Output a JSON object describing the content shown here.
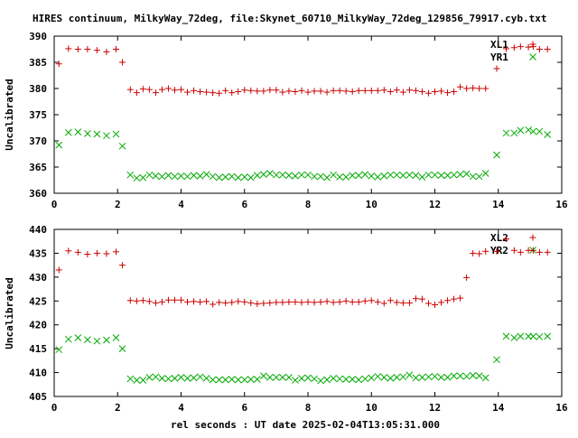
{
  "chart_data": [
    {
      "type": "scatter",
      "title": "HIRES continuum, MilkyWay_72deg, file:Skynet_60710_MilkyWay_72deg_129856_79917.cyb.txt",
      "ylabel": "Uncalibrated",
      "xlim": [
        0,
        16
      ],
      "ylim": [
        360,
        390
      ],
      "x_ticks": [
        "0",
        "2",
        "4",
        "6",
        "8",
        "10",
        "12",
        "14",
        "16"
      ],
      "y_ticks": [
        "360",
        "365",
        "370",
        "375",
        "380",
        "385",
        "390"
      ],
      "legend_position": "top-right",
      "series": [
        {
          "name": "XL1",
          "marker": "plus",
          "color": "#cc0000",
          "x": [
            0.15,
            0.45,
            0.75,
            1.05,
            1.35,
            1.65,
            1.95,
            2.15,
            2.4,
            2.6,
            2.8,
            3.0,
            3.2,
            3.4,
            3.6,
            3.8,
            4.0,
            4.2,
            4.4,
            4.6,
            4.8,
            5.0,
            5.2,
            5.4,
            5.6,
            5.8,
            6.0,
            6.2,
            6.4,
            6.6,
            6.8,
            7.0,
            7.2,
            7.4,
            7.6,
            7.8,
            8.0,
            8.2,
            8.4,
            8.6,
            8.8,
            9.0,
            9.2,
            9.4,
            9.6,
            9.8,
            10.0,
            10.2,
            10.4,
            10.6,
            10.8,
            11.0,
            11.2,
            11.4,
            11.6,
            11.8,
            12.0,
            12.2,
            12.4,
            12.6,
            12.8,
            13.0,
            13.2,
            13.4,
            13.6,
            13.95,
            14.25,
            14.5,
            14.7,
            14.95,
            15.1,
            15.3,
            15.55
          ],
          "y": [
            384.7,
            387.6,
            387.5,
            387.5,
            387.3,
            387.0,
            387.5,
            385.0,
            379.8,
            379.2,
            379.9,
            379.8,
            379.2,
            379.8,
            380.0,
            379.7,
            379.8,
            379.3,
            379.6,
            379.4,
            379.3,
            379.2,
            379.1,
            379.6,
            379.2,
            379.4,
            379.7,
            379.6,
            379.5,
            379.5,
            379.7,
            379.7,
            379.3,
            379.5,
            379.4,
            379.6,
            379.3,
            379.5,
            379.5,
            379.3,
            379.6,
            379.6,
            379.5,
            379.4,
            379.6,
            379.6,
            379.6,
            379.6,
            379.7,
            379.4,
            379.7,
            379.3,
            379.7,
            379.6,
            379.4,
            379.1,
            379.4,
            379.5,
            379.2,
            379.4,
            380.3,
            380.0,
            380.1,
            380.0,
            380.0,
            383.8,
            387.6,
            387.8,
            388.0,
            387.9,
            388.0,
            387.5,
            387.5
          ]
        },
        {
          "name": "YR1",
          "marker": "cross",
          "color": "#00aa00",
          "x": [
            0.15,
            0.45,
            0.75,
            1.05,
            1.35,
            1.65,
            1.95,
            2.15,
            2.4,
            2.6,
            2.8,
            3.0,
            3.2,
            3.4,
            3.6,
            3.8,
            4.0,
            4.2,
            4.4,
            4.6,
            4.8,
            5.0,
            5.2,
            5.4,
            5.6,
            5.8,
            6.0,
            6.2,
            6.4,
            6.6,
            6.8,
            7.0,
            7.2,
            7.4,
            7.6,
            7.8,
            8.0,
            8.2,
            8.4,
            8.6,
            8.8,
            9.0,
            9.2,
            9.4,
            9.6,
            9.8,
            10.0,
            10.2,
            10.4,
            10.6,
            10.8,
            11.0,
            11.2,
            11.4,
            11.6,
            11.8,
            12.0,
            12.2,
            12.4,
            12.6,
            12.8,
            13.0,
            13.2,
            13.4,
            13.6,
            13.95,
            14.25,
            14.5,
            14.7,
            14.95,
            15.1,
            15.3,
            15.55
          ],
          "y": [
            369.2,
            371.6,
            371.7,
            371.4,
            371.3,
            371.0,
            371.3,
            369.0,
            363.5,
            362.9,
            363.0,
            363.5,
            363.3,
            363.2,
            363.4,
            363.2,
            363.3,
            363.2,
            363.4,
            363.3,
            363.6,
            363.2,
            363.0,
            363.1,
            363.2,
            363.0,
            363.1,
            363.0,
            363.4,
            363.6,
            363.8,
            363.5,
            363.5,
            363.4,
            363.3,
            363.5,
            363.5,
            363.2,
            363.2,
            363.0,
            363.5,
            363.1,
            363.1,
            363.4,
            363.4,
            363.6,
            363.3,
            363.1,
            363.3,
            363.5,
            363.5,
            363.4,
            363.5,
            363.4,
            363.1,
            363.5,
            363.5,
            363.4,
            363.4,
            363.5,
            363.6,
            363.7,
            363.2,
            363.2,
            363.8,
            367.3,
            371.5,
            371.5,
            372.0,
            372.1,
            371.8,
            371.8,
            371.2
          ]
        }
      ]
    },
    {
      "type": "scatter",
      "xlabel": "rel seconds : UT date 2025-02-04T13:05:31.000",
      "ylabel": "Uncalibrated",
      "xlim": [
        0,
        16
      ],
      "ylim": [
        405,
        440
      ],
      "x_ticks": [
        "0",
        "2",
        "4",
        "6",
        "8",
        "10",
        "12",
        "14",
        "16"
      ],
      "y_ticks": [
        "405",
        "410",
        "415",
        "420",
        "425",
        "430",
        "435",
        "440"
      ],
      "legend_position": "top-right",
      "series": [
        {
          "name": "XL2",
          "marker": "plus",
          "color": "#cc0000",
          "x": [
            0.15,
            0.45,
            0.75,
            1.05,
            1.35,
            1.65,
            1.95,
            2.15,
            2.4,
            2.6,
            2.8,
            3.0,
            3.2,
            3.4,
            3.6,
            3.8,
            4.0,
            4.2,
            4.4,
            4.6,
            4.8,
            5.0,
            5.2,
            5.4,
            5.6,
            5.8,
            6.0,
            6.2,
            6.4,
            6.6,
            6.8,
            7.0,
            7.2,
            7.4,
            7.6,
            7.8,
            8.0,
            8.2,
            8.4,
            8.6,
            8.8,
            9.0,
            9.2,
            9.4,
            9.6,
            9.8,
            10.0,
            10.2,
            10.4,
            10.6,
            10.8,
            11.0,
            11.2,
            11.4,
            11.6,
            11.8,
            12.0,
            12.2,
            12.4,
            12.6,
            12.8,
            13.0,
            13.2,
            13.4,
            13.6,
            13.95,
            14.25,
            14.5,
            14.7,
            14.95,
            15.1,
            15.3,
            15.55
          ],
          "y": [
            431.5,
            435.5,
            435.2,
            434.8,
            435.0,
            434.9,
            435.3,
            432.5,
            425.1,
            425.0,
            425.1,
            424.9,
            424.6,
            424.8,
            425.2,
            425.2,
            425.2,
            424.8,
            424.9,
            424.8,
            424.9,
            424.3,
            424.7,
            424.6,
            424.7,
            424.9,
            424.8,
            424.6,
            424.4,
            424.5,
            424.6,
            424.7,
            424.7,
            424.8,
            424.8,
            424.7,
            424.8,
            424.7,
            424.8,
            424.9,
            424.7,
            424.8,
            425.0,
            424.8,
            424.8,
            425.0,
            425.1,
            424.8,
            424.5,
            425.1,
            424.7,
            424.6,
            424.6,
            425.5,
            425.4,
            424.5,
            424.2,
            424.7,
            425.1,
            425.4,
            425.6,
            429.9,
            435.0,
            434.9,
            435.4,
            435.4,
            438.0,
            435.6,
            435.2,
            435.6,
            435.6,
            435.2,
            435.2
          ]
        },
        {
          "name": "YR2",
          "marker": "cross",
          "color": "#00aa00",
          "x": [
            0.15,
            0.45,
            0.75,
            1.05,
            1.35,
            1.65,
            1.95,
            2.15,
            2.4,
            2.6,
            2.8,
            3.0,
            3.2,
            3.4,
            3.6,
            3.8,
            4.0,
            4.2,
            4.4,
            4.6,
            4.8,
            5.0,
            5.2,
            5.4,
            5.6,
            5.8,
            6.0,
            6.2,
            6.4,
            6.6,
            6.8,
            7.0,
            7.2,
            7.4,
            7.6,
            7.8,
            8.0,
            8.2,
            8.4,
            8.6,
            8.8,
            9.0,
            9.2,
            9.4,
            9.6,
            9.8,
            10.0,
            10.2,
            10.4,
            10.6,
            10.8,
            11.0,
            11.2,
            11.4,
            11.6,
            11.8,
            12.0,
            12.2,
            12.4,
            12.6,
            12.8,
            13.0,
            13.2,
            13.4,
            13.6,
            13.95,
            14.25,
            14.5,
            14.7,
            14.95,
            15.1,
            15.3,
            15.55
          ],
          "y": [
            414.8,
            417.0,
            417.3,
            416.9,
            416.6,
            416.8,
            417.3,
            415.0,
            408.7,
            408.4,
            408.4,
            409.0,
            409.1,
            408.8,
            408.7,
            408.8,
            409.0,
            408.8,
            408.9,
            409.1,
            408.8,
            408.5,
            408.5,
            408.5,
            408.6,
            408.5,
            408.5,
            408.6,
            408.6,
            409.3,
            409.0,
            409.0,
            409.0,
            409.0,
            408.4,
            408.8,
            408.9,
            408.7,
            408.3,
            408.5,
            408.8,
            408.7,
            408.6,
            408.6,
            408.5,
            408.7,
            408.9,
            409.2,
            409.0,
            408.8,
            409.0,
            409.1,
            409.5,
            408.9,
            409.0,
            409.1,
            409.2,
            409.0,
            409.0,
            409.3,
            409.3,
            409.2,
            409.4,
            409.3,
            408.9,
            412.7,
            417.6,
            417.3,
            417.6,
            417.6,
            417.6,
            417.5,
            417.6
          ]
        }
      ]
    }
  ]
}
